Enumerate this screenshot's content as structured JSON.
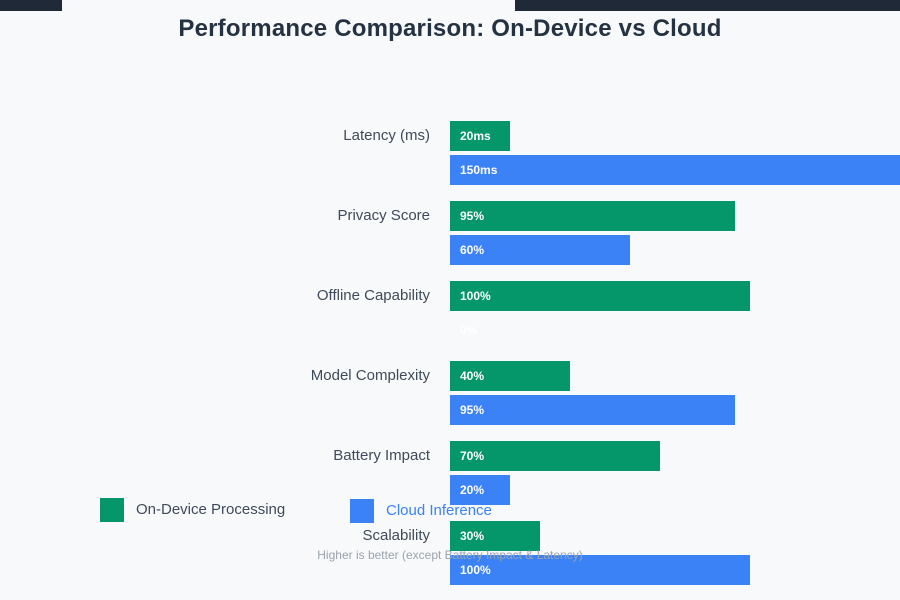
{
  "title": "Performance Comparison: On-Device vs Cloud",
  "subtitle": "Higher is better (except Battery Impact & Latency)",
  "legend": {
    "items": [
      {
        "label": "On-Device Processing",
        "color": "#059669",
        "label_color": "#3f4a5a"
      },
      {
        "label": "Cloud Inference",
        "color": "#3b82f6",
        "label_color": "#3b82f6"
      }
    ]
  },
  "colors": {
    "on_device": "#059669",
    "cloud": "#3b82f6",
    "background": "#f8f9fa",
    "title_text": "#243242",
    "category_text": "#3f4a5a",
    "subtitle_text": "#9aa3ad",
    "bar_value_text": "#ffffff",
    "top_edge_bar": "#1f2937"
  },
  "chart_data": {
    "type": "bar",
    "orientation": "horizontal",
    "title": "Performance Comparison: On-Device vs Cloud",
    "subtitle": "Higher is better (except Battery Impact & Latency)",
    "categories": [
      "Latency (ms)",
      "Privacy Score",
      "Offline Capability",
      "Model Complexity",
      "Battery Impact",
      "Scalability"
    ],
    "series": [
      {
        "name": "On-Device Processing",
        "color": "#059669",
        "values": [
          20,
          95,
          100,
          40,
          70,
          30
        ],
        "value_labels": [
          "20ms",
          "95%",
          "100%",
          "40%",
          "70%",
          "30%"
        ]
      },
      {
        "name": "Cloud Inference",
        "color": "#3b82f6",
        "values": [
          150,
          60,
          0,
          95,
          20,
          100
        ],
        "value_labels": [
          "150ms",
          "60%",
          "0%",
          "95%",
          "20%",
          "100%"
        ]
      }
    ],
    "xlim": [
      0,
      150
    ],
    "axis_visible": false,
    "grid": false,
    "value_labels_inside": true,
    "legend_position": "bottom-left"
  }
}
